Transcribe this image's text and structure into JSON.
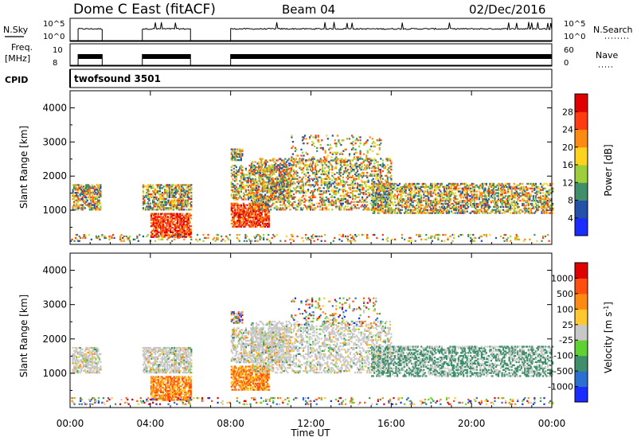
{
  "header": {
    "station": "Dome C East (fitACF)",
    "beam": "Beam 04",
    "date": "02/Dec/2016"
  },
  "status_panels": {
    "nsky_label": "N.Sky",
    "nsky_tick_hi": "10^5",
    "nsky_tick_lo": "10^0",
    "nsearch_label": "N.Search",
    "nsearch_tick_hi": "10^5",
    "nsearch_tick_lo": "10^0",
    "freq_label": "Freq.",
    "freq_unit": "[MHz]",
    "freq_tick_hi": "10",
    "freq_tick_lo": "8",
    "nave_label": "Nave",
    "nave_tick_hi": "60",
    "nave_tick_lo": "0",
    "cpid_label": "CPID",
    "cpid_value": "twofsound 3501"
  },
  "chart_data": [
    {
      "type": "heatmap",
      "panel": "power",
      "ylabel": "Slant Range [km]",
      "yticks": [
        "1000",
        "2000",
        "3000",
        "4000"
      ],
      "ylim": [
        0,
        4500
      ],
      "colorbar_label": "Power [dB]",
      "colorbar_ticks": [
        "4",
        "8",
        "12",
        "16",
        "20",
        "24",
        "28"
      ],
      "colorbar_range": [
        0,
        32
      ],
      "colors": [
        "#1a2cff",
        "#2350a8",
        "#3f8f6a",
        "#9ccf3a",
        "#ffd21e",
        "#ff8a12",
        "#ff3c10",
        "#e00000"
      ],
      "data_gaps_hours": [
        [
          1.6,
          3.6
        ],
        [
          6.0,
          8.0
        ]
      ]
    },
    {
      "type": "heatmap",
      "panel": "velocity",
      "ylabel": "Slant Range [km]",
      "yticks": [
        "1000",
        "2000",
        "3000",
        "4000"
      ],
      "ylim": [
        0,
        4500
      ],
      "colorbar_label": "Velocity [m s",
      "colorbar_unit_sup": "-1",
      "colorbar_unit_close": "]",
      "colorbar_ticks": [
        "1000",
        "500",
        "100",
        "25",
        "-25",
        "-100",
        "-500",
        "-1000"
      ],
      "colors": [
        "#1a2cff",
        "#2b6fd0",
        "#3f8f6a",
        "#5fd130",
        "#c8c8c8",
        "#ffc830",
        "#ff8a12",
        "#ff5010",
        "#e00000"
      ],
      "data_gaps_hours": [
        [
          1.6,
          3.6
        ],
        [
          6.0,
          8.0
        ]
      ]
    }
  ],
  "x_axis": {
    "label": "Time UT",
    "ticks": [
      "00:00",
      "04:00",
      "08:00",
      "12:00",
      "16:00",
      "20:00",
      "00:00"
    ],
    "range_hours": [
      0,
      24
    ]
  }
}
